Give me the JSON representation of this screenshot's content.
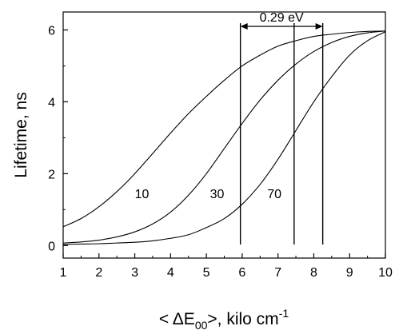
{
  "chart_data": {
    "type": "line",
    "xlabel": {
      "prefix": "< ΔE",
      "sub": "00",
      "mid": ">, kilo cm",
      "sup": "-1"
    },
    "ylabel": "Lifetime, ns",
    "xlim": [
      1,
      10
    ],
    "ylim": [
      -0.35,
      6.5
    ],
    "xticks": [
      1,
      2,
      3,
      4,
      5,
      6,
      7,
      8,
      9,
      10
    ],
    "yticks": [
      0,
      2,
      4,
      6
    ],
    "grid": false,
    "series": [
      {
        "name": "10",
        "x": [
          1,
          1.5,
          2,
          2.5,
          3,
          3.5,
          4,
          4.5,
          5,
          5.5,
          6,
          6.5,
          7,
          7.5,
          8,
          8.5,
          9,
          9.5,
          10
        ],
        "y": [
          0.52,
          0.75,
          1.08,
          1.5,
          2.0,
          2.56,
          3.13,
          3.67,
          4.15,
          4.6,
          5.0,
          5.3,
          5.55,
          5.7,
          5.82,
          5.88,
          5.93,
          5.96,
          5.97
        ]
      },
      {
        "name": "30",
        "x": [
          1,
          1.5,
          2,
          2.5,
          3,
          3.5,
          4,
          4.5,
          5,
          5.5,
          6,
          6.5,
          7,
          7.5,
          8,
          8.5,
          9,
          9.5,
          10
        ],
        "y": [
          0.07,
          0.1,
          0.15,
          0.24,
          0.38,
          0.6,
          0.93,
          1.4,
          2.0,
          2.7,
          3.4,
          4.05,
          4.6,
          5.05,
          5.4,
          5.65,
          5.82,
          5.92,
          5.97
        ]
      },
      {
        "name": "70",
        "x": [
          1,
          1.5,
          2,
          2.5,
          3,
          3.5,
          4,
          4.5,
          5,
          5.5,
          6,
          6.5,
          7,
          7.5,
          8,
          8.5,
          9,
          9.5,
          10
        ],
        "y": [
          0.03,
          0.04,
          0.05,
          0.07,
          0.09,
          0.13,
          0.2,
          0.3,
          0.5,
          0.75,
          1.15,
          1.7,
          2.4,
          3.2,
          4.0,
          4.7,
          5.3,
          5.7,
          5.95
        ]
      }
    ],
    "curve_labels": [
      {
        "text": "10",
        "x": 3.2,
        "y": 1.45
      },
      {
        "text": "30",
        "x": 5.3,
        "y": 1.45
      },
      {
        "text": "70",
        "x": 6.9,
        "y": 1.45
      }
    ],
    "vertical_markers": [
      5.95,
      7.45,
      8.25
    ],
    "annotation": {
      "text": "0.29 eV",
      "x_from": 5.95,
      "x_to": 8.25,
      "y": 6.1
    }
  }
}
